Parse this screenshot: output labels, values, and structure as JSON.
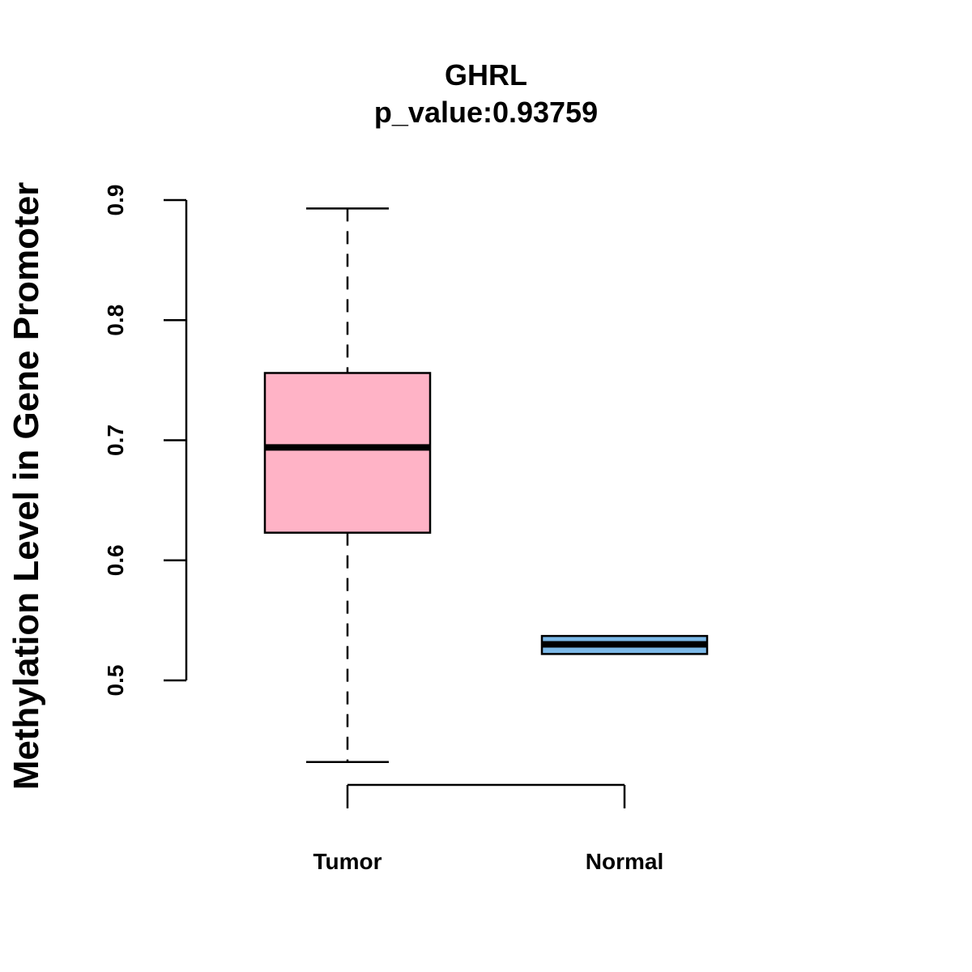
{
  "chart_data": {
    "type": "boxplot",
    "title": "GHRL",
    "subtitle": "p_value:0.93759",
    "xlabel": "",
    "ylabel": "Methylation Level in Gene Promoter",
    "ylim": [
      0.5,
      0.9
    ],
    "y_ticks": [
      0.5,
      0.6,
      0.7,
      0.8,
      0.9
    ],
    "y_tick_labels": [
      "0.5",
      "0.6",
      "0.7",
      "0.8",
      "0.9"
    ],
    "categories": [
      "Tumor",
      "Normal"
    ],
    "series": [
      {
        "name": "Tumor",
        "whisker_low": 0.432,
        "q1": 0.623,
        "median": 0.694,
        "q3": 0.756,
        "whisker_high": 0.893,
        "color": "#FFB3C6"
      },
      {
        "name": "Normal",
        "whisker_low": 0.522,
        "q1": 0.522,
        "median": 0.53,
        "q3": 0.537,
        "whisker_high": 0.537,
        "color": "#7CB9E8"
      }
    ],
    "grid": false,
    "legend": "none"
  }
}
